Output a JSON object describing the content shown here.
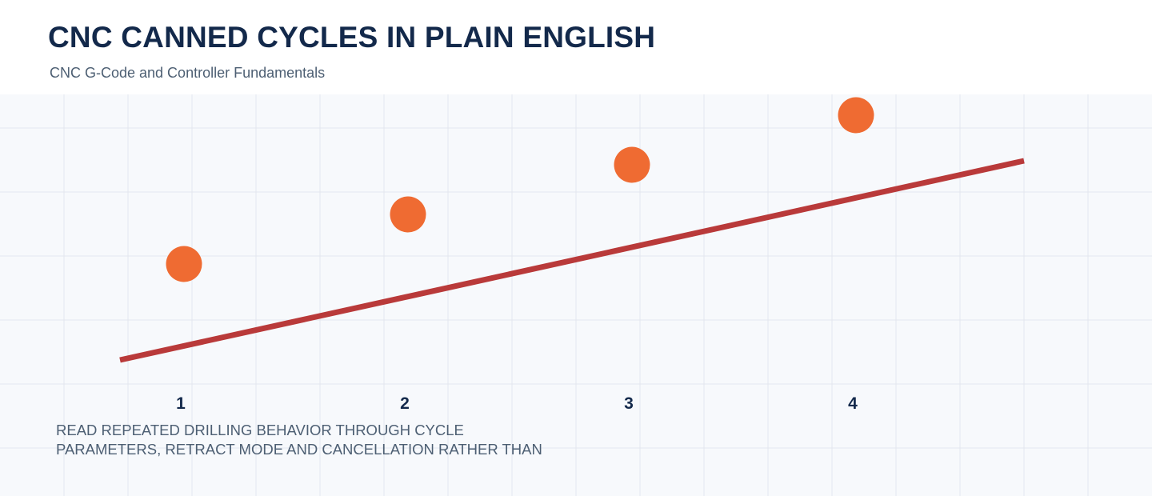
{
  "header": {
    "title": "CNC CANNED CYCLES IN PLAIN ENGLISH",
    "subtitle": "CNC G-Code and Controller Fundamentals"
  },
  "diagram": {
    "steps": [
      {
        "label": "1"
      },
      {
        "label": "2"
      },
      {
        "label": "3"
      },
      {
        "label": "4"
      }
    ],
    "colors": {
      "background": "#f7f9fc",
      "grid": "#e3e7ef",
      "marker": "#ef6b32",
      "trend_line": "#b93a3a",
      "title": "#13294b",
      "body_text": "#4d5f73"
    }
  },
  "caption": {
    "lines": [
      "READ REPEATED DRILLING BEHAVIOR THROUGH CYCLE",
      "PARAMETERS, RETRACT MODE AND CANCELLATION RATHER THAN"
    ]
  }
}
